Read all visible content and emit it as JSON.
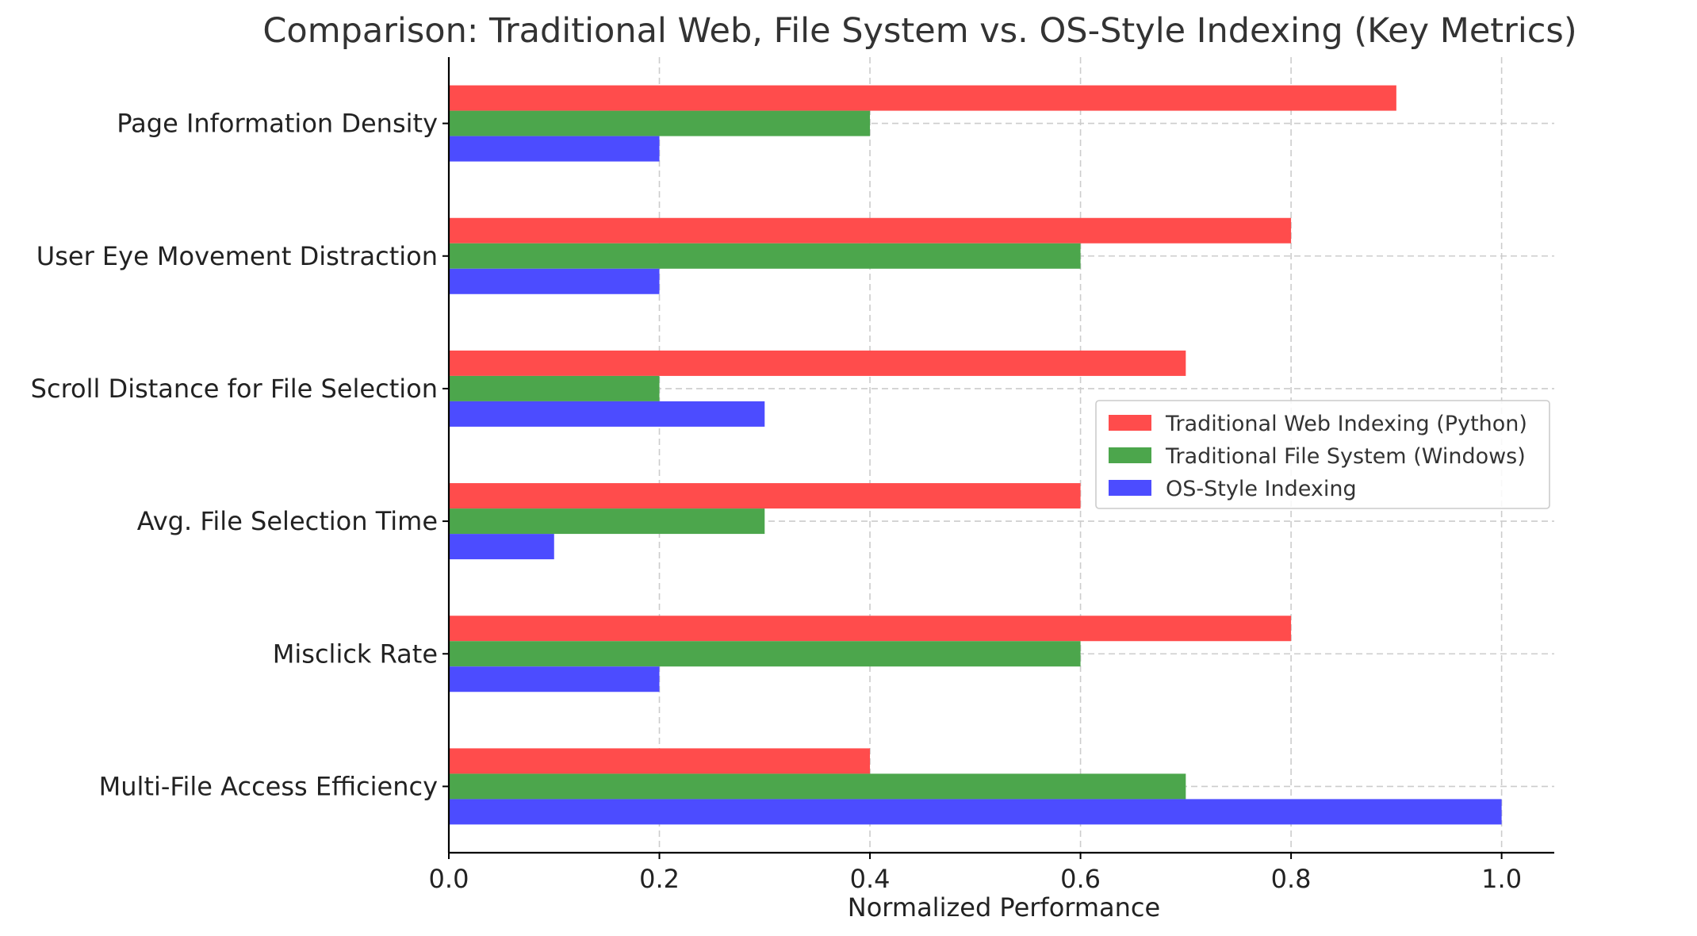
{
  "chart_data": {
    "type": "bar",
    "orientation": "horizontal",
    "title": "Comparison: Traditional Web, File System vs. OS-Style Indexing (Key Metrics)",
    "xlabel": "Normalized Performance",
    "ylabel": "",
    "xlim": [
      0,
      1.05
    ],
    "xticks": [
      "0.0",
      "0.2",
      "0.4",
      "0.6",
      "0.8",
      "1.0"
    ],
    "grid": true,
    "legend_position": "center-right",
    "categories": [
      "Multi-File Access Efficiency",
      "Misclick Rate",
      "Avg. File Selection Time",
      "Scroll Distance for File Selection",
      "User Eye Movement Distraction",
      "Page Information Density"
    ],
    "series": [
      {
        "name": "Traditional Web Indexing (Python)",
        "color": "#ff4c4c",
        "values": [
          0.4,
          0.8,
          0.6,
          0.7,
          0.8,
          0.9
        ]
      },
      {
        "name": "Traditional File System (Windows)",
        "color": "#4ca64c",
        "values": [
          0.7,
          0.6,
          0.3,
          0.2,
          0.6,
          0.4
        ]
      },
      {
        "name": "OS-Style Indexing",
        "color": "#4c4cff",
        "values": [
          1.0,
          0.2,
          0.1,
          0.3,
          0.2,
          0.2
        ]
      }
    ]
  }
}
